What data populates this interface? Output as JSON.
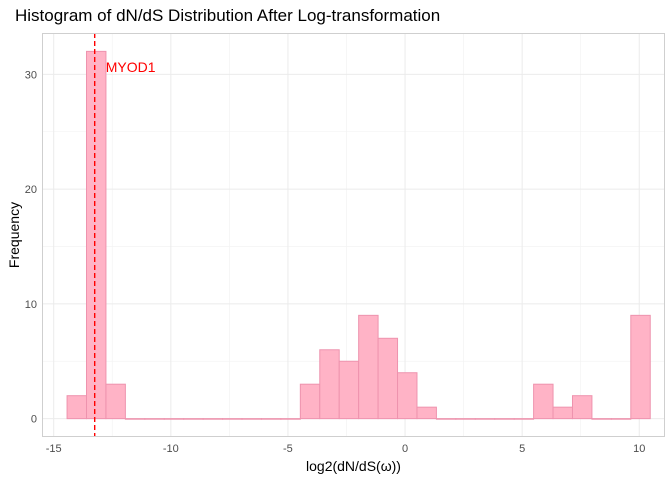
{
  "chart_data": {
    "type": "histogram",
    "title": "Histogram of dN/dS Distribution After Log-transformation",
    "xlabel": "log2(dN/dS(ω))",
    "ylabel": "Frequency",
    "xlim": [
      -15.5,
      11.1
    ],
    "ylim": [
      -1.6,
      33.6
    ],
    "x_ticks": [
      -15,
      -10,
      -5,
      0,
      5,
      10
    ],
    "y_ticks": [
      0,
      10,
      20,
      30
    ],
    "grid": true,
    "bin_width": 0.83,
    "bins": [
      {
        "start": -14.43,
        "count": 2
      },
      {
        "start": -13.6,
        "count": 32
      },
      {
        "start": -12.77,
        "count": 3
      },
      {
        "start": -11.94,
        "count": 0
      },
      {
        "start": -11.11,
        "count": 0
      },
      {
        "start": -10.28,
        "count": 0
      },
      {
        "start": -9.45,
        "count": 0
      },
      {
        "start": -8.62,
        "count": 0
      },
      {
        "start": -7.79,
        "count": 0
      },
      {
        "start": -6.96,
        "count": 0
      },
      {
        "start": -6.13,
        "count": 0
      },
      {
        "start": -5.3,
        "count": 0
      },
      {
        "start": -4.47,
        "count": 3
      },
      {
        "start": -3.64,
        "count": 6
      },
      {
        "start": -2.81,
        "count": 5
      },
      {
        "start": -1.98,
        "count": 9
      },
      {
        "start": -1.15,
        "count": 7
      },
      {
        "start": -0.32,
        "count": 4
      },
      {
        "start": 0.51,
        "count": 1
      },
      {
        "start": 1.34,
        "count": 0
      },
      {
        "start": 2.17,
        "count": 0
      },
      {
        "start": 3.0,
        "count": 0
      },
      {
        "start": 3.83,
        "count": 0
      },
      {
        "start": 4.66,
        "count": 0
      },
      {
        "start": 5.49,
        "count": 3
      },
      {
        "start": 6.32,
        "count": 1
      },
      {
        "start": 7.15,
        "count": 2
      },
      {
        "start": 7.98,
        "count": 0
      },
      {
        "start": 8.81,
        "count": 0
      },
      {
        "start": 9.64,
        "count": 9
      }
    ],
    "reference_line": {
      "x": -13.25,
      "label": "MYOD1",
      "color": "#ff0000",
      "style": "dashed"
    },
    "colors": {
      "bar_fill": "#ffb3c6",
      "bar_outline": "#ee93ae",
      "grid": "#ebebeb",
      "panel_border": "#cfcfcf"
    }
  }
}
